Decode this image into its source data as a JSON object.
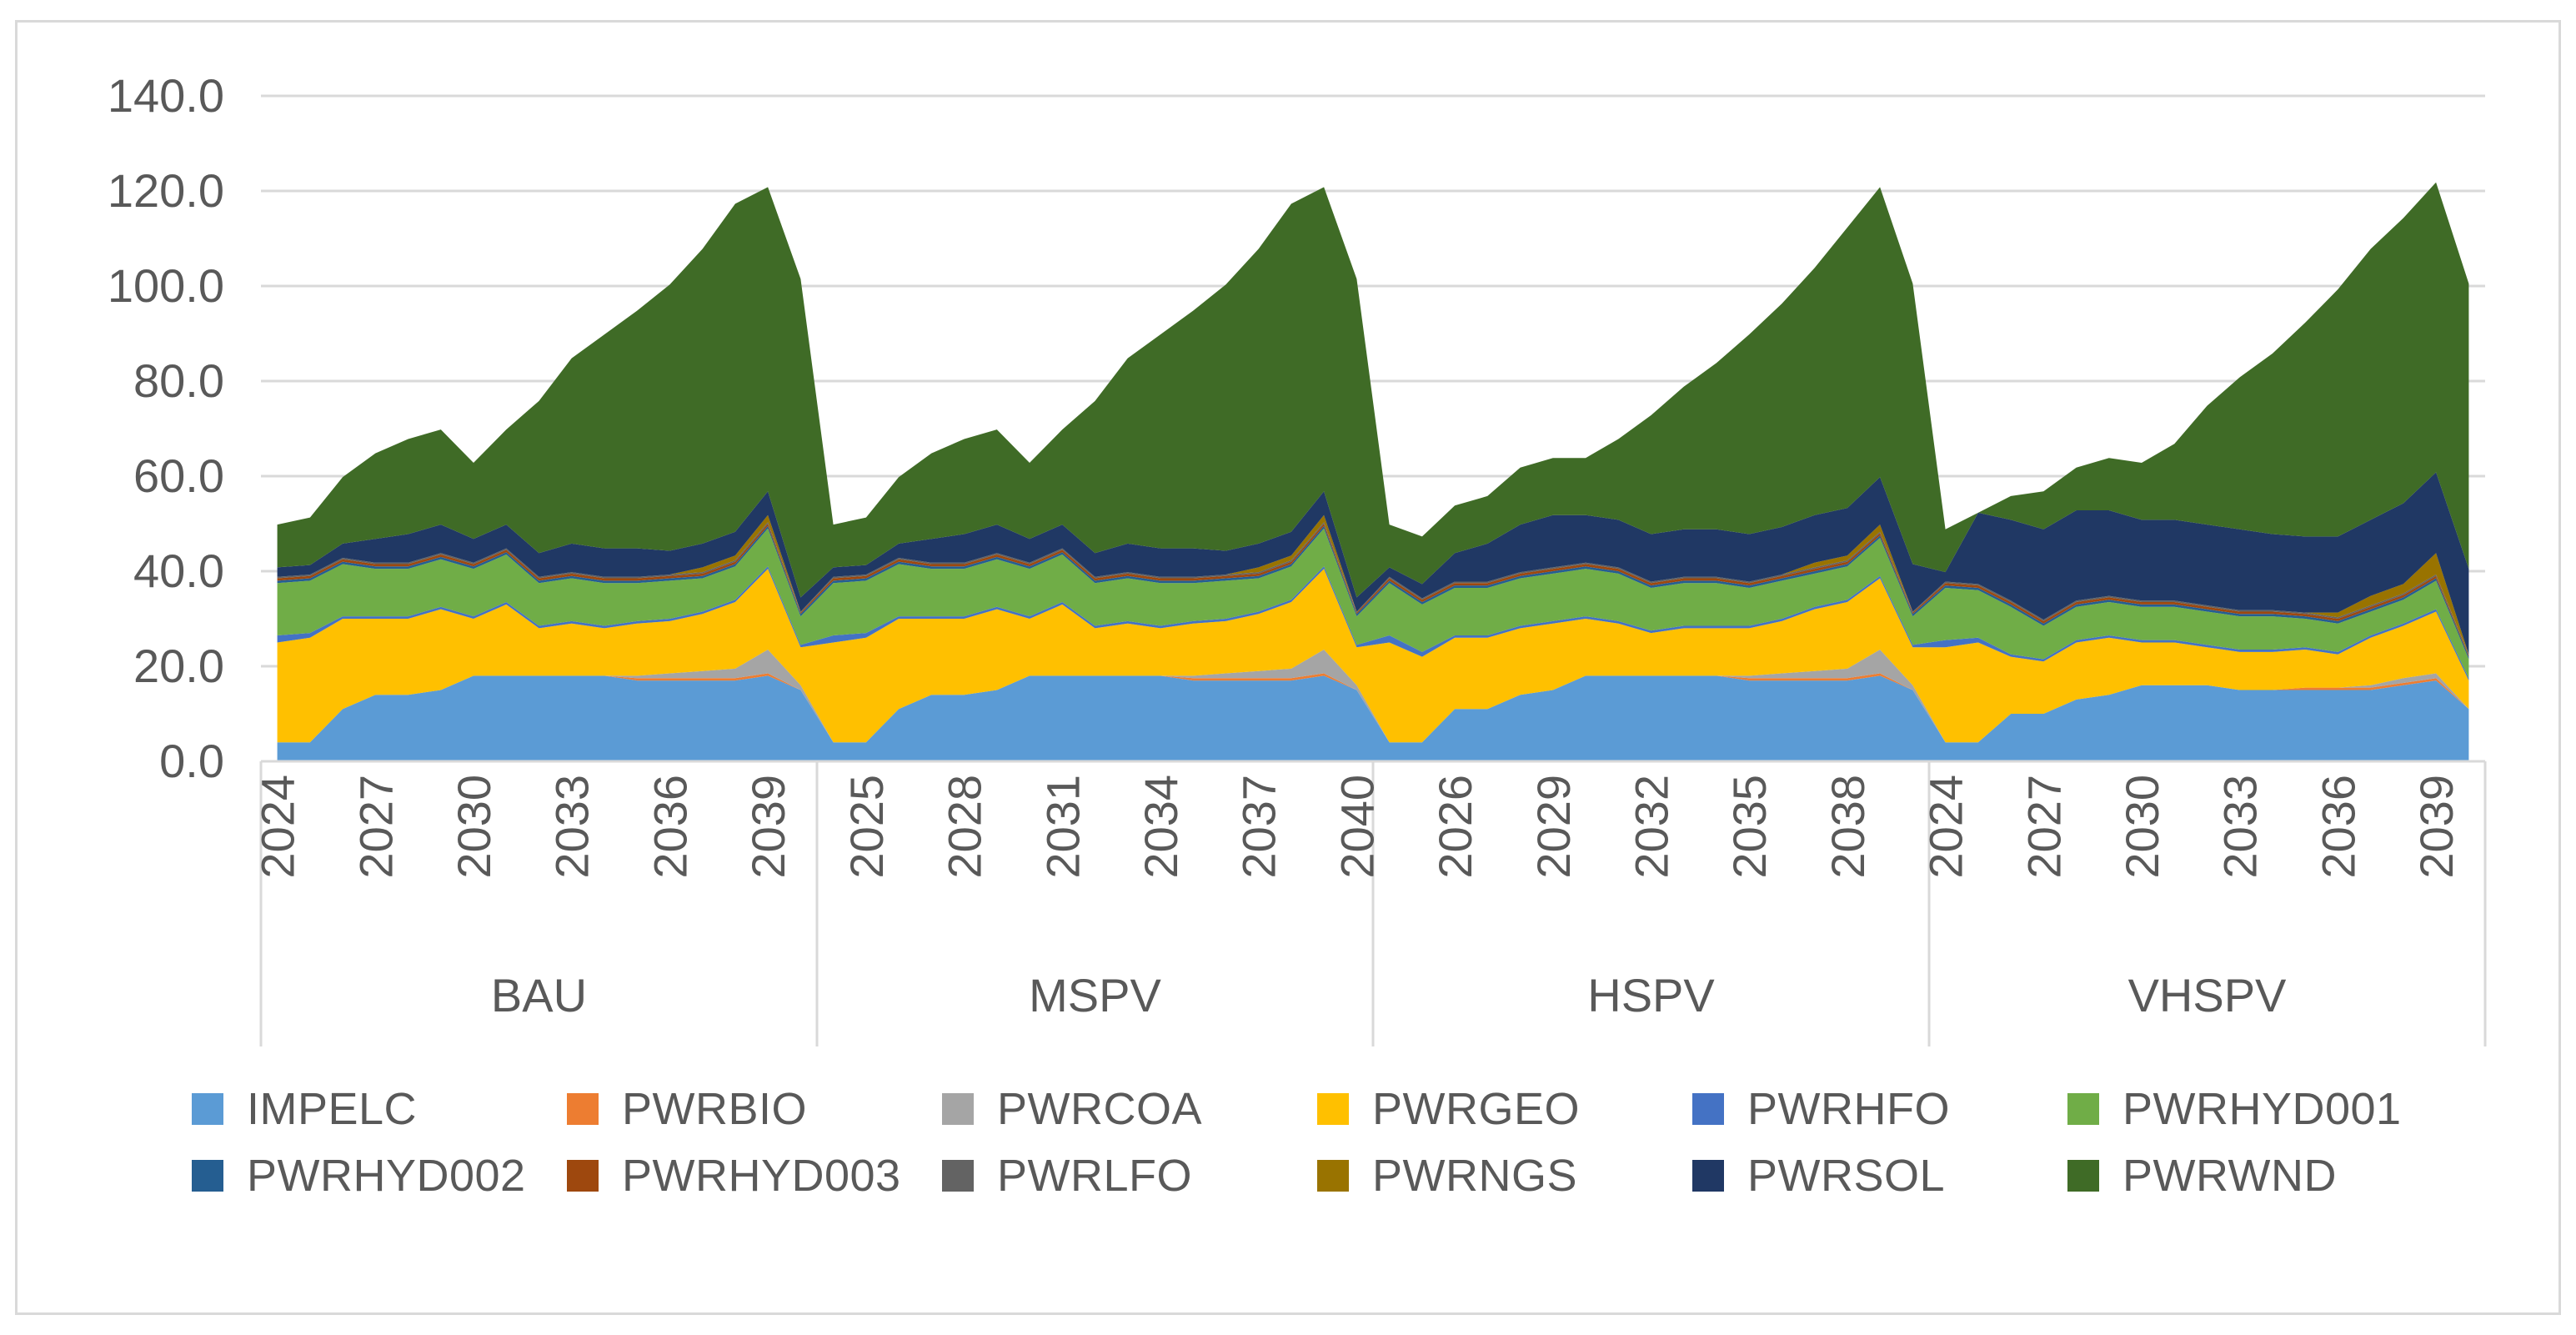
{
  "chart_data": {
    "type": "area",
    "stacked": true,
    "title": "",
    "xlabel": "",
    "ylabel": "",
    "ylim": [
      0,
      140
    ],
    "y_ticks": [
      0,
      20,
      40,
      60,
      80,
      100,
      120,
      140
    ],
    "y_tick_labels": [
      "0.0",
      "20.0",
      "40.0",
      "60.0",
      "80.0",
      "100.0",
      "120.0",
      "140.0"
    ],
    "grid": true,
    "legend_position": "bottom",
    "groups": [
      {
        "name": "BAU",
        "years": [
          2024,
          2025,
          2026,
          2027,
          2028,
          2029,
          2030,
          2031,
          2032,
          2033,
          2034,
          2035,
          2036,
          2037,
          2038,
          2039,
          2040
        ],
        "tick_labels": [
          "2024",
          "2027",
          "2030",
          "2033",
          "2036",
          "2039"
        ]
      },
      {
        "name": "MSPV",
        "years": [
          2024,
          2025,
          2026,
          2027,
          2028,
          2029,
          2030,
          2031,
          2032,
          2033,
          2034,
          2035,
          2036,
          2037,
          2038,
          2039,
          2040
        ],
        "tick_labels": [
          "2025",
          "2028",
          "2031",
          "2034",
          "2037",
          "2040"
        ]
      },
      {
        "name": "HSPV",
        "years": [
          2024,
          2025,
          2026,
          2027,
          2028,
          2029,
          2030,
          2031,
          2032,
          2033,
          2034,
          2035,
          2036,
          2037,
          2038,
          2039,
          2040
        ],
        "tick_labels": [
          "2026",
          "2029",
          "2032",
          "2035",
          "2038"
        ]
      },
      {
        "name": "VHSPV",
        "years": [
          2024,
          2025,
          2026,
          2027,
          2028,
          2029,
          2030,
          2031,
          2032,
          2033,
          2034,
          2035,
          2036,
          2037,
          2038,
          2039,
          2040
        ],
        "tick_labels": [
          "2024",
          "2027",
          "2030",
          "2033",
          "2036",
          "2039"
        ]
      }
    ],
    "series": [
      {
        "name": "IMPELC",
        "color": "#5b9bd5",
        "values": [
          4,
          4,
          11,
          14,
          14,
          15,
          18,
          18,
          18,
          18,
          18,
          17,
          17,
          17,
          17,
          18,
          15,
          4,
          4,
          11,
          14,
          14,
          15,
          18,
          18,
          18,
          18,
          18,
          17,
          17,
          17,
          17,
          18,
          15,
          4,
          4,
          11,
          11,
          14,
          15,
          18,
          18,
          18,
          18,
          18,
          17,
          17,
          17,
          17,
          18,
          15,
          4,
          4,
          10,
          10,
          13,
          14,
          16,
          16,
          16,
          15,
          15,
          15,
          15,
          15,
          16,
          17,
          11
        ]
      },
      {
        "name": "PWRBIO",
        "color": "#ed7d31",
        "values": [
          0,
          0,
          0,
          0,
          0,
          0,
          0,
          0,
          0,
          0,
          0,
          0.5,
          0.5,
          0.5,
          0.5,
          0.5,
          0,
          0,
          0,
          0,
          0,
          0,
          0,
          0,
          0,
          0,
          0,
          0,
          0.5,
          0.5,
          0.5,
          0.5,
          0.5,
          0,
          0,
          0,
          0,
          0,
          0,
          0,
          0,
          0,
          0,
          0,
          0,
          0.5,
          0.5,
          0.5,
          0.5,
          0.5,
          0,
          0,
          0,
          0,
          0,
          0,
          0,
          0,
          0,
          0,
          0,
          0,
          0.5,
          0.5,
          0.5,
          0.5,
          0.5,
          0
        ]
      },
      {
        "name": "PWRCOA",
        "color": "#a5a5a5",
        "values": [
          0,
          0,
          0,
          0,
          0,
          0,
          0,
          0,
          0,
          0,
          0,
          0.5,
          1,
          1.5,
          2,
          5,
          1,
          0,
          0,
          0,
          0,
          0,
          0,
          0,
          0,
          0,
          0,
          0,
          0.5,
          1,
          1.5,
          2,
          5,
          1,
          0,
          0,
          0,
          0,
          0,
          0,
          0,
          0,
          0,
          0,
          0,
          0.5,
          1,
          1.5,
          2,
          5,
          1,
          0,
          0,
          0,
          0,
          0,
          0,
          0,
          0,
          0,
          0,
          0,
          0,
          0,
          0.5,
          1,
          1,
          0
        ]
      },
      {
        "name": "PWRGEO",
        "color": "#ffc000",
        "values": [
          21,
          22,
          19,
          16,
          16,
          17,
          12,
          15,
          10,
          11,
          10,
          11,
          11,
          12,
          14,
          17,
          8,
          21,
          22,
          19,
          16,
          16,
          17,
          12,
          15,
          10,
          11,
          10,
          11,
          11,
          12,
          14,
          17,
          8,
          21,
          18,
          15,
          15,
          14,
          14,
          12,
          11,
          9,
          10,
          10,
          10,
          11,
          13,
          14,
          15,
          8,
          20,
          21,
          12,
          11,
          12,
          12,
          9,
          9,
          8,
          8,
          8,
          8,
          7,
          10,
          11,
          13,
          6
        ]
      },
      {
        "name": "PWRHFO",
        "color": "#4472c4",
        "values": [
          1.5,
          1,
          0.5,
          0.5,
          0.5,
          0.5,
          0.5,
          0.5,
          0.5,
          0.5,
          0.5,
          0.5,
          0.5,
          0.5,
          0.5,
          0.5,
          0.5,
          1.5,
          1,
          0.5,
          0.5,
          0.5,
          0.5,
          0.5,
          0.5,
          0.5,
          0.5,
          0.5,
          0.5,
          0.5,
          0.5,
          0.5,
          0.5,
          0.5,
          1.5,
          1,
          0.5,
          0.5,
          0.5,
          0.5,
          0.5,
          0.5,
          0.5,
          0.5,
          0.5,
          0.5,
          0.5,
          0.5,
          0.5,
          0.5,
          0.5,
          1.5,
          1,
          0.5,
          0.5,
          0.5,
          0.5,
          0.5,
          0.5,
          0.5,
          0.5,
          0.5,
          0.5,
          0.5,
          0.5,
          0.5,
          0.5,
          0.5
        ]
      },
      {
        "name": "PWRHYD001",
        "color": "#70ad47",
        "values": [
          11,
          11,
          11,
          10,
          10,
          10,
          10,
          10,
          9,
          9,
          9,
          8,
          8,
          7,
          7,
          8,
          6,
          11,
          11,
          11,
          10,
          10,
          10,
          10,
          10,
          9,
          9,
          9,
          8,
          8,
          7,
          7,
          8,
          6,
          11,
          10,
          10,
          10,
          10,
          10,
          10,
          10,
          9,
          9,
          9,
          8,
          8,
          7,
          7,
          8,
          6,
          11,
          10,
          10,
          7,
          7,
          7,
          7,
          7,
          7,
          7,
          7,
          6,
          6,
          5,
          5,
          6,
          4
        ]
      },
      {
        "name": "PWRHYD002",
        "color": "#255e91",
        "values": [
          0.5,
          0.5,
          0.5,
          0.5,
          0.5,
          0.5,
          0.5,
          0.5,
          0.5,
          0.5,
          0.5,
          0.5,
          0.5,
          0.5,
          0.5,
          0.5,
          0.5,
          0.5,
          0.5,
          0.5,
          0.5,
          0.5,
          0.5,
          0.5,
          0.5,
          0.5,
          0.5,
          0.5,
          0.5,
          0.5,
          0.5,
          0.5,
          0.5,
          0.5,
          0.5,
          0.5,
          0.5,
          0.5,
          0.5,
          0.5,
          0.5,
          0.5,
          0.5,
          0.5,
          0.5,
          0.5,
          0.5,
          0.5,
          0.5,
          0.5,
          0.5,
          0.5,
          0.5,
          0.5,
          0.5,
          0.5,
          0.5,
          0.5,
          0.5,
          0.5,
          0.5,
          0.5,
          0.5,
          0.5,
          0.5,
          0.5,
          0.5,
          0.5
        ]
      },
      {
        "name": "PWRHYD003",
        "color": "#9e480e",
        "values": [
          0.5,
          0.5,
          0.5,
          0.5,
          0.5,
          0.5,
          0.5,
          0.5,
          0.5,
          0.5,
          0.5,
          0.5,
          0.5,
          0.5,
          0.5,
          0.5,
          0.3,
          0.5,
          0.5,
          0.5,
          0.5,
          0.5,
          0.5,
          0.5,
          0.5,
          0.5,
          0.5,
          0.5,
          0.5,
          0.5,
          0.5,
          0.5,
          0.5,
          0.3,
          0.5,
          0.5,
          0.5,
          0.5,
          0.5,
          0.5,
          0.5,
          0.5,
          0.5,
          0.5,
          0.5,
          0.5,
          0.5,
          0.5,
          0.5,
          0.5,
          0.3,
          0.5,
          0.5,
          0.5,
          0.5,
          0.5,
          0.5,
          0.5,
          0.5,
          0.5,
          0.5,
          0.5,
          0.5,
          0.5,
          0.5,
          0.5,
          0.5,
          0.3
        ]
      },
      {
        "name": "PWRLFO",
        "color": "#636363",
        "values": [
          0.3,
          0.3,
          0.3,
          0.3,
          0.3,
          0.3,
          0.3,
          0.3,
          0.3,
          0.3,
          0.3,
          0.3,
          0.3,
          0.3,
          0.3,
          0.3,
          0.2,
          0.3,
          0.3,
          0.3,
          0.3,
          0.3,
          0.3,
          0.3,
          0.3,
          0.3,
          0.3,
          0.3,
          0.3,
          0.3,
          0.3,
          0.3,
          0.3,
          0.2,
          0.3,
          0.3,
          0.3,
          0.3,
          0.3,
          0.3,
          0.3,
          0.3,
          0.3,
          0.3,
          0.3,
          0.3,
          0.3,
          0.3,
          0.3,
          0.3,
          0.2,
          0.3,
          0.3,
          0.3,
          0.3,
          0.3,
          0.3,
          0.3,
          0.3,
          0.3,
          0.3,
          0.3,
          0.3,
          0.3,
          0.3,
          0.3,
          0.3,
          0.2
        ]
      },
      {
        "name": "PWRNGS",
        "color": "#997300",
        "values": [
          0,
          0,
          0,
          0,
          0,
          0,
          0,
          0,
          0,
          0,
          0,
          0,
          0,
          1,
          1,
          1.5,
          0,
          0,
          0,
          0,
          0,
          0,
          0,
          0,
          0,
          0,
          0,
          0,
          0,
          0,
          1,
          1,
          1.5,
          0,
          0,
          0,
          0,
          0,
          0,
          0,
          0,
          0,
          0,
          0,
          0,
          0,
          0,
          1,
          1,
          1.5,
          0,
          0,
          0,
          0,
          0,
          0,
          0,
          0,
          0,
          0,
          0,
          0,
          0,
          1,
          2,
          2,
          4.5,
          0
        ]
      },
      {
        "name": "PWRSOL",
        "color": "#203864",
        "values": [
          2,
          2,
          3,
          5,
          6,
          6,
          5,
          5,
          5,
          6,
          6,
          6,
          5,
          5,
          5,
          5,
          3,
          2,
          2,
          3,
          5,
          6,
          6,
          5,
          5,
          5,
          6,
          6,
          6,
          5,
          5,
          5,
          5,
          3,
          2,
          3,
          6,
          8,
          10,
          11,
          10,
          10,
          10,
          10,
          10,
          10,
          10,
          10,
          10,
          10,
          10,
          2,
          15,
          17,
          19,
          19,
          18,
          17,
          17,
          17,
          17,
          16,
          16,
          16,
          16,
          17,
          17,
          18
        ]
      },
      {
        "name": "PWRWND",
        "color": "#3f6b26",
        "values": [
          9,
          10,
          14,
          18,
          20,
          20,
          16,
          20,
          32,
          39,
          45,
          50,
          56,
          62,
          69,
          64,
          67,
          9,
          10,
          14,
          18,
          20,
          20,
          16,
          20,
          32,
          39,
          45,
          50,
          56,
          62,
          69,
          64,
          67,
          9,
          10,
          10,
          10,
          12,
          12,
          12,
          17,
          25,
          30,
          35,
          42,
          47,
          52,
          59,
          61,
          59,
          9,
          0,
          5,
          8,
          9,
          11,
          12,
          16,
          25,
          32,
          38,
          45,
          52,
          57,
          60,
          61,
          60
        ]
      }
    ]
  }
}
